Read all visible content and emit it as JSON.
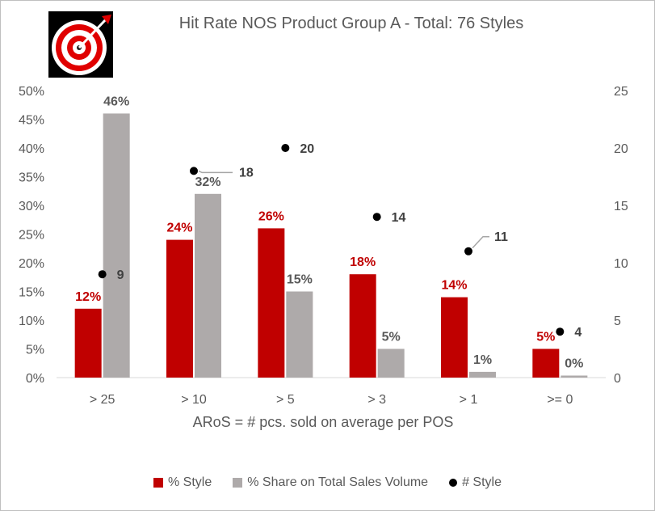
{
  "chart_data": {
    "type": "bar",
    "title": "Hit Rate NOS Product Group A - Total: 76 Styles",
    "xlabel": "ARoS = # pcs. sold on average per POS",
    "categories": [
      "> 25",
      "> 10",
      "> 5",
      "> 3",
      "> 1",
      ">= 0"
    ],
    "series": [
      {
        "name": "% Style",
        "color": "#c00000",
        "axis": "left",
        "values": [
          12,
          24,
          26,
          18,
          14,
          5
        ],
        "labels": [
          "12%",
          "24%",
          "26%",
          "18%",
          "14%",
          "5%"
        ]
      },
      {
        "name": "% Share on Total Sales Volume",
        "color": "#aeaaaa",
        "axis": "left",
        "values": [
          46,
          32,
          15,
          5,
          1,
          0
        ],
        "labels": [
          "46%",
          "32%",
          "15%",
          "5%",
          "1%",
          "0%"
        ]
      },
      {
        "name": "# Style",
        "color": "#000000",
        "axis": "right",
        "type": "scatter",
        "values": [
          9,
          18,
          20,
          14,
          11,
          4
        ],
        "labels": [
          "9",
          "18",
          "20",
          "14",
          "11",
          "4"
        ]
      }
    ],
    "ylim_left": [
      0,
      50
    ],
    "yticks_left": [
      "0%",
      "5%",
      "10%",
      "15%",
      "20%",
      "25%",
      "30%",
      "35%",
      "40%",
      "45%",
      "50%"
    ],
    "ylim_right": [
      0,
      25
    ],
    "yticks_right": [
      "0",
      "5",
      "10",
      "15",
      "20",
      "25"
    ],
    "legend": "bottom",
    "grid": false
  },
  "icons": {
    "logo": "target-bullseye-icon"
  }
}
